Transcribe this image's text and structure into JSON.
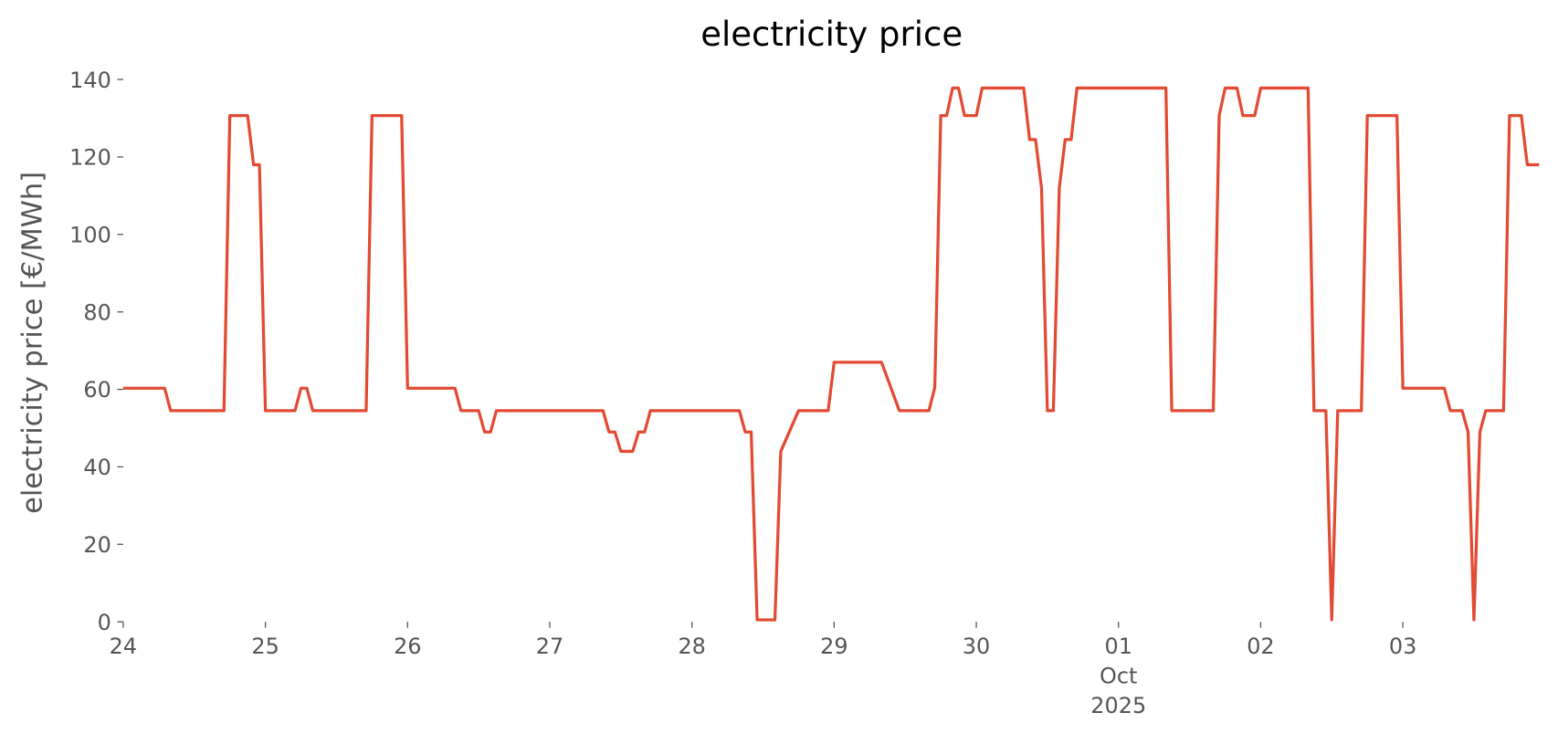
{
  "chart_data": {
    "type": "line",
    "title": "electricity price",
    "y_label": "electricity price [€/MWh]",
    "x": [
      "2025-09-24 00:00",
      "2025-09-24 07:00",
      "2025-09-24 08:00",
      "2025-09-24 17:00",
      "2025-09-24 18:00",
      "2025-09-24 21:00",
      "2025-09-24 22:00",
      "2025-09-24 23:00",
      "2025-09-25 00:00",
      "2025-09-25 05:00",
      "2025-09-25 06:00",
      "2025-09-25 07:00",
      "2025-09-25 08:00",
      "2025-09-25 17:00",
      "2025-09-25 18:00",
      "2025-09-25 23:00",
      "2025-09-26 00:00",
      "2025-09-26 08:00",
      "2025-09-26 09:00",
      "2025-09-26 12:00",
      "2025-09-26 13:00",
      "2025-09-26 14:00",
      "2025-09-26 15:00",
      "2025-09-27 09:00",
      "2025-09-27 10:00",
      "2025-09-27 11:00",
      "2025-09-27 12:00",
      "2025-09-27 14:00",
      "2025-09-27 15:00",
      "2025-09-27 16:00",
      "2025-09-27 17:00",
      "2025-09-28 08:00",
      "2025-09-28 09:00",
      "2025-09-28 10:00",
      "2025-09-28 11:00",
      "2025-09-28 14:00",
      "2025-09-28 15:00",
      "2025-09-28 18:00",
      "2025-09-28 23:00",
      "2025-09-29 00:00",
      "2025-09-29 08:00",
      "2025-09-29 11:00",
      "2025-09-29 16:00",
      "2025-09-29 17:00",
      "2025-09-29 18:00",
      "2025-09-29 19:00",
      "2025-09-29 20:00",
      "2025-09-29 21:00",
      "2025-09-29 22:00",
      "2025-09-30 00:00",
      "2025-09-30 01:00",
      "2025-09-30 08:00",
      "2025-09-30 09:00",
      "2025-09-30 10:00",
      "2025-09-30 11:00",
      "2025-09-30 12:00",
      "2025-09-30 13:00",
      "2025-09-30 14:00",
      "2025-09-30 15:00",
      "2025-09-30 16:00",
      "2025-09-30 17:00",
      "2025-10-01 08:00",
      "2025-10-01 09:00",
      "2025-10-01 16:00",
      "2025-10-01 17:00",
      "2025-10-01 18:00",
      "2025-10-01 20:00",
      "2025-10-01 21:00",
      "2025-10-01 23:00",
      "2025-10-02 00:00",
      "2025-10-02 08:00",
      "2025-10-02 09:00",
      "2025-10-02 11:00",
      "2025-10-02 12:00",
      "2025-10-02 13:00",
      "2025-10-02 17:00",
      "2025-10-02 18:00",
      "2025-10-02 23:00",
      "2025-10-03 00:00",
      "2025-10-03 07:00",
      "2025-10-03 08:00",
      "2025-10-03 10:00",
      "2025-10-03 11:00",
      "2025-10-03 12:00",
      "2025-10-03 13:00",
      "2025-10-03 14:00",
      "2025-10-03 17:00",
      "2025-10-03 18:00",
      "2025-10-03 20:00",
      "2025-10-03 21:00",
      "2025-10-03 23:00"
    ],
    "series": [
      {
        "name": "electricity price",
        "color": "#e24a33",
        "values": [
          60.3,
          60.3,
          54.5,
          54.5,
          130.7,
          130.7,
          118,
          118,
          54.5,
          54.5,
          60.3,
          60.3,
          54.5,
          54.5,
          130.7,
          130.7,
          60.3,
          60.3,
          54.5,
          54.5,
          49,
          49,
          54.5,
          54.5,
          49,
          49,
          44,
          44,
          49,
          49,
          54.5,
          54.5,
          49,
          49,
          0.5,
          0.5,
          44,
          54.5,
          54.5,
          67,
          67,
          54.5,
          54.5,
          60.5,
          130.7,
          130.7,
          137.8,
          137.8,
          130.7,
          130.7,
          137.8,
          137.8,
          124.5,
          124.5,
          112,
          54.5,
          54.5,
          112,
          124.5,
          124.5,
          137.8,
          137.8,
          54.5,
          54.5,
          130.7,
          137.8,
          137.8,
          130.7,
          130.7,
          137.8,
          137.8,
          54.5,
          54.5,
          0.5,
          54.5,
          54.5,
          130.7,
          130.7,
          60.3,
          60.3,
          54.5,
          54.5,
          49,
          0.5,
          49,
          54.5,
          54.5,
          130.7,
          130.7,
          118,
          118
        ]
      }
    ],
    "xlim": [
      "2025-09-24 00:00",
      "2025-10-03 23:00"
    ],
    "xticks": [
      {
        "value": "2025-09-24 00:00",
        "label": "24"
      },
      {
        "value": "2025-09-25 00:00",
        "label": "25"
      },
      {
        "value": "2025-09-26 00:00",
        "label": "26"
      },
      {
        "value": "2025-09-27 00:00",
        "label": "27"
      },
      {
        "value": "2025-09-28 00:00",
        "label": "28"
      },
      {
        "value": "2025-09-29 00:00",
        "label": "29"
      },
      {
        "value": "2025-09-30 00:00",
        "label": "30"
      },
      {
        "value": "2025-10-01 00:00",
        "label": "01\nOct\n2025"
      },
      {
        "value": "2025-10-02 00:00",
        "label": "02"
      },
      {
        "value": "2025-10-03 00:00",
        "label": "03"
      }
    ],
    "ylim": [
      0,
      140
    ],
    "yticks": [
      0,
      20,
      40,
      60,
      80,
      100,
      120,
      140
    ],
    "grid": false
  }
}
